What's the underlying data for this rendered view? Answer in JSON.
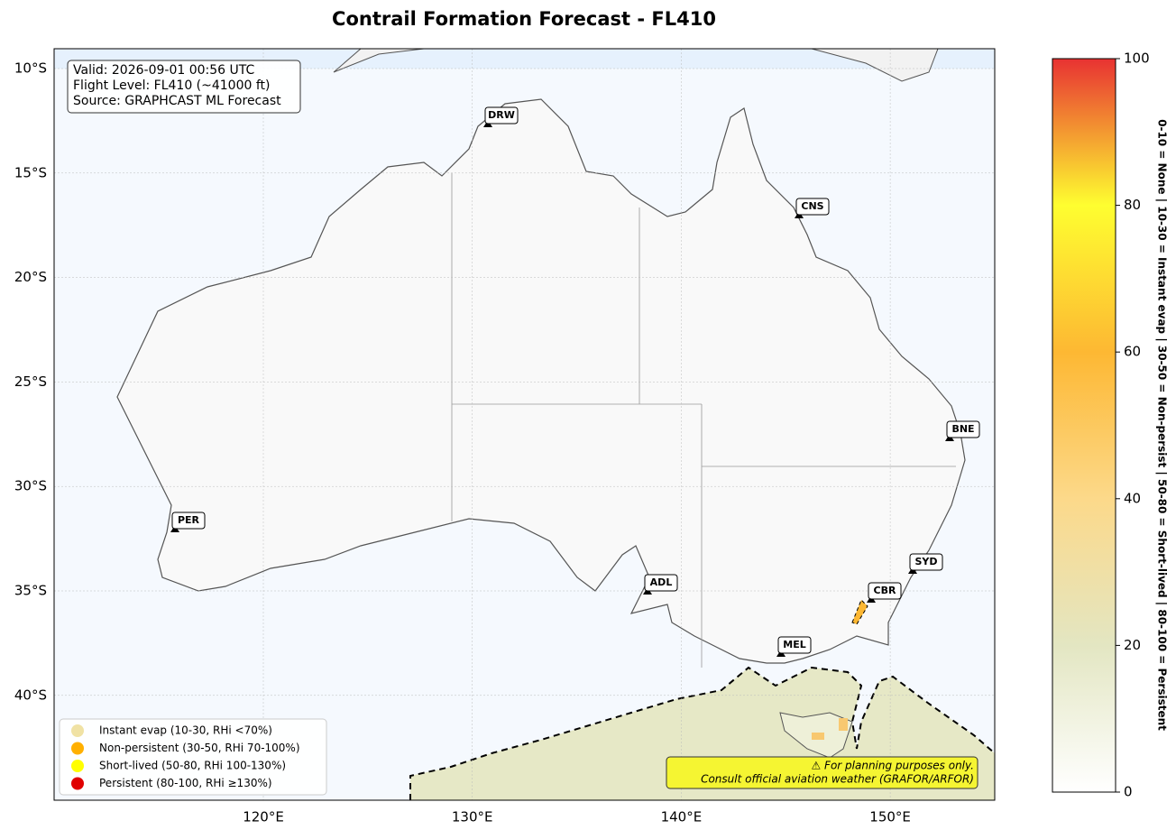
{
  "title": "Contrail Formation Forecast - FL410",
  "info": [
    "Valid: 2026-09-01 00:56 UTC",
    "Flight Level: FL410 (~41000 ft)",
    "Source: GRAPHCAST ML Forecast"
  ],
  "axes": {
    "x_ticks": [
      "120°E",
      "130°E",
      "140°E",
      "150°E"
    ],
    "y_ticks": [
      "10°S",
      "15°S",
      "20°S",
      "25°S",
      "30°S",
      "35°S",
      "40°S"
    ]
  },
  "cities": [
    "DRW",
    "CNS",
    "BNE",
    "PER",
    "ADL",
    "SYD",
    "CBR",
    "MEL"
  ],
  "legend": [
    {
      "label": "Instant evap (10-30, RHi <70%)",
      "color": "#f0e2a4"
    },
    {
      "label": "Non-persistent (30-50, RHi 70-100%)",
      "color": "#ffb000"
    },
    {
      "label": "Short-lived (50-80, RHi 100-130%)",
      "color": "#ffff00"
    },
    {
      "label": "Persistent (80-100, RHi ≥130%)",
      "color": "#e00000"
    }
  ],
  "warning": [
    "⚠ For planning purposes only.",
    "Consult official aviation weather (GRAFOR/ARFOR)"
  ],
  "colorbar": {
    "lim": [
      0,
      100
    ],
    "ticks": [
      0,
      20,
      40,
      60,
      80,
      100
    ],
    "label": "0-10 = None | 10-30 = Instant evap | 30-50 = Non-persist | 50-80 = Short-lived | 80-100 = Persistent"
  }
}
